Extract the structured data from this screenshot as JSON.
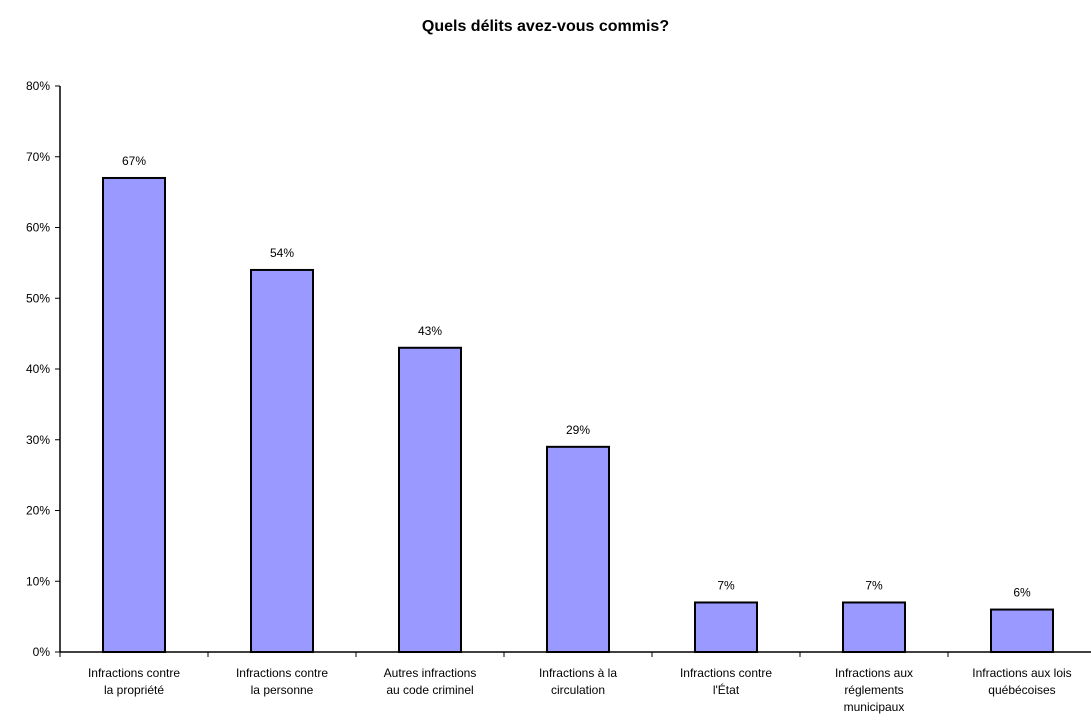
{
  "chart_data": {
    "type": "bar",
    "title": "Quels délits avez-vous commis?",
    "categories": [
      [
        "Infractions contre",
        "la propriété"
      ],
      [
        "Infractions contre",
        "la personne"
      ],
      [
        "Autres infractions",
        "au code criminel"
      ],
      [
        "Infractions à la",
        "circulation"
      ],
      [
        "Infractions contre",
        "l'État"
      ],
      [
        "Infractions aux",
        "réglements",
        "municipaux"
      ],
      [
        "Infractions aux lois",
        "québécoises"
      ]
    ],
    "values": [
      67,
      54,
      43,
      29,
      7,
      7,
      6
    ],
    "data_labels": [
      "67%",
      "54%",
      "43%",
      "29%",
      "7%",
      "7%",
      "6%"
    ],
    "y_ticks": [
      0,
      10,
      20,
      30,
      40,
      50,
      60,
      70,
      80
    ],
    "y_tick_labels": [
      "0%",
      "10%",
      "20%",
      "30%",
      "40%",
      "50%",
      "60%",
      "70%",
      "80%"
    ],
    "ylim": [
      0,
      80
    ],
    "xlabel": "",
    "ylabel": "",
    "grid": false,
    "legend": "none",
    "colors": {
      "bar_fill": "#9999ff",
      "bar_stroke": "#000000"
    }
  }
}
